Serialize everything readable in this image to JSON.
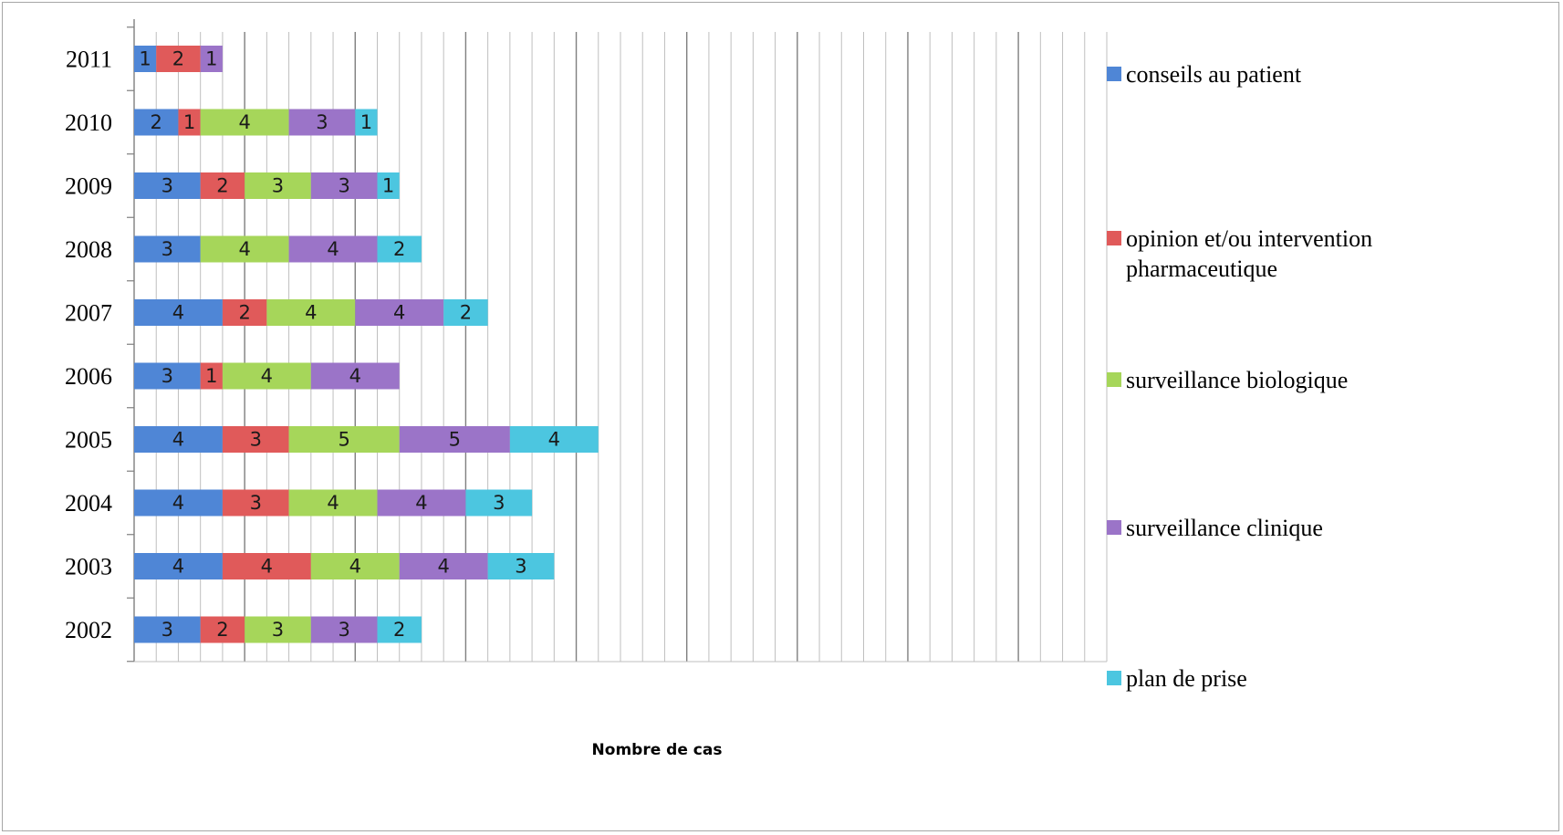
{
  "chart_data": {
    "type": "bar",
    "orientation": "horizontal",
    "stacked": true,
    "title": "",
    "xlabel": "Nombre de cas",
    "ylabel": "",
    "xlim": [
      0,
      44
    ],
    "grid": true,
    "legend_position": "right",
    "categories": [
      "2002",
      "2003",
      "2004",
      "2005",
      "2006",
      "2007",
      "2008",
      "2009",
      "2010",
      "2011"
    ],
    "series": [
      {
        "name": "conseils au patient",
        "color": "#4f86d6",
        "values": [
          3,
          4,
          4,
          4,
          3,
          4,
          3,
          3,
          2,
          1
        ]
      },
      {
        "name": "opinion et/ou intervention pharmaceutique",
        "color": "#e05a5a",
        "values": [
          2,
          4,
          3,
          3,
          1,
          2,
          0,
          2,
          1,
          2
        ]
      },
      {
        "name": "surveillance biologique",
        "color": "#a6d65a",
        "values": [
          3,
          4,
          4,
          5,
          4,
          4,
          4,
          3,
          4,
          0
        ]
      },
      {
        "name": "surveillance clinique",
        "color": "#9b74c8",
        "values": [
          3,
          4,
          4,
          5,
          4,
          4,
          4,
          3,
          3,
          1
        ]
      },
      {
        "name": "plan de prise",
        "color": "#4cc6e0",
        "values": [
          2,
          3,
          3,
          4,
          0,
          2,
          2,
          1,
          1,
          0
        ]
      }
    ]
  }
}
